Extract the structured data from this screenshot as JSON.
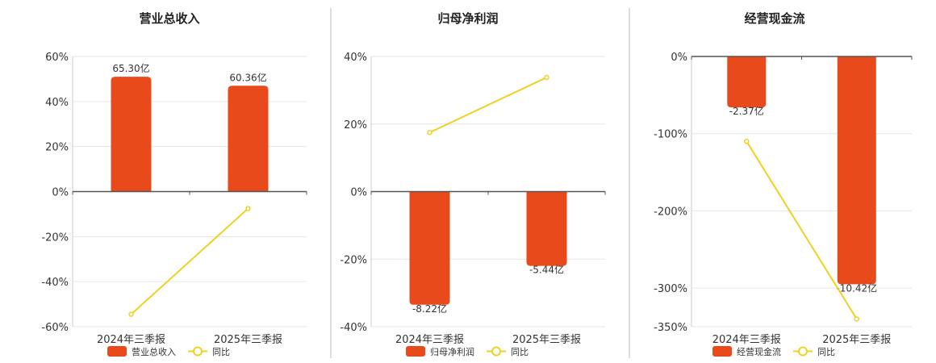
{
  "chart_data": [
    {
      "type": "bar",
      "title": "营业总收入",
      "categories": [
        "2024年三季报",
        "2025年三季报"
      ],
      "ylim": [
        -60,
        60
      ],
      "yticks": [
        60,
        40,
        20,
        0,
        -20,
        -40,
        -60
      ],
      "ytick_labels": [
        "60%",
        "40%",
        "20%",
        "0%",
        "-20%",
        "-40%",
        "-60%"
      ],
      "series": [
        {
          "name": "营业总收入",
          "kind": "bar",
          "values": [
            51,
            47
          ],
          "data_labels": [
            "65.30亿",
            "60.36亿"
          ]
        },
        {
          "name": "同比",
          "kind": "line",
          "values": [
            -54.5,
            -7.5
          ]
        }
      ]
    },
    {
      "type": "bar",
      "title": "归母净利润",
      "categories": [
        "2024年三季报",
        "2025年三季报"
      ],
      "ylim": [
        -40,
        40
      ],
      "yticks": [
        40,
        20,
        0,
        -20,
        -40
      ],
      "ytick_labels": [
        "40%",
        "20%",
        "0%",
        "-20%",
        "-40%"
      ],
      "series": [
        {
          "name": "归母净利润",
          "kind": "bar",
          "values": [
            -33.5,
            -22
          ],
          "data_labels": [
            "-8.22亿",
            "-5.44亿"
          ]
        },
        {
          "name": "同比",
          "kind": "line",
          "values": [
            17.5,
            33.8
          ]
        }
      ]
    },
    {
      "type": "bar",
      "title": "经营现金流",
      "categories": [
        "2024年三季报",
        "2025年三季报"
      ],
      "ylim": [
        -350,
        0
      ],
      "yticks": [
        0,
        -100,
        -200,
        -300,
        -350
      ],
      "ytick_labels": [
        "0%",
        "-100%",
        "-200%",
        "-300%",
        "-350%"
      ],
      "series": [
        {
          "name": "经营现金流",
          "kind": "bar",
          "values": [
            -66,
            -295
          ],
          "data_labels": [
            "-2.37亿",
            "-10.42亿"
          ]
        },
        {
          "name": "同比",
          "kind": "line",
          "values": [
            -110,
            -340
          ]
        }
      ]
    }
  ],
  "colors": {
    "bar": "#e84a1c",
    "line": "#f0d020",
    "grid": "#e6e6e6",
    "axis": "#555555",
    "divider": "#bbbbbb"
  }
}
